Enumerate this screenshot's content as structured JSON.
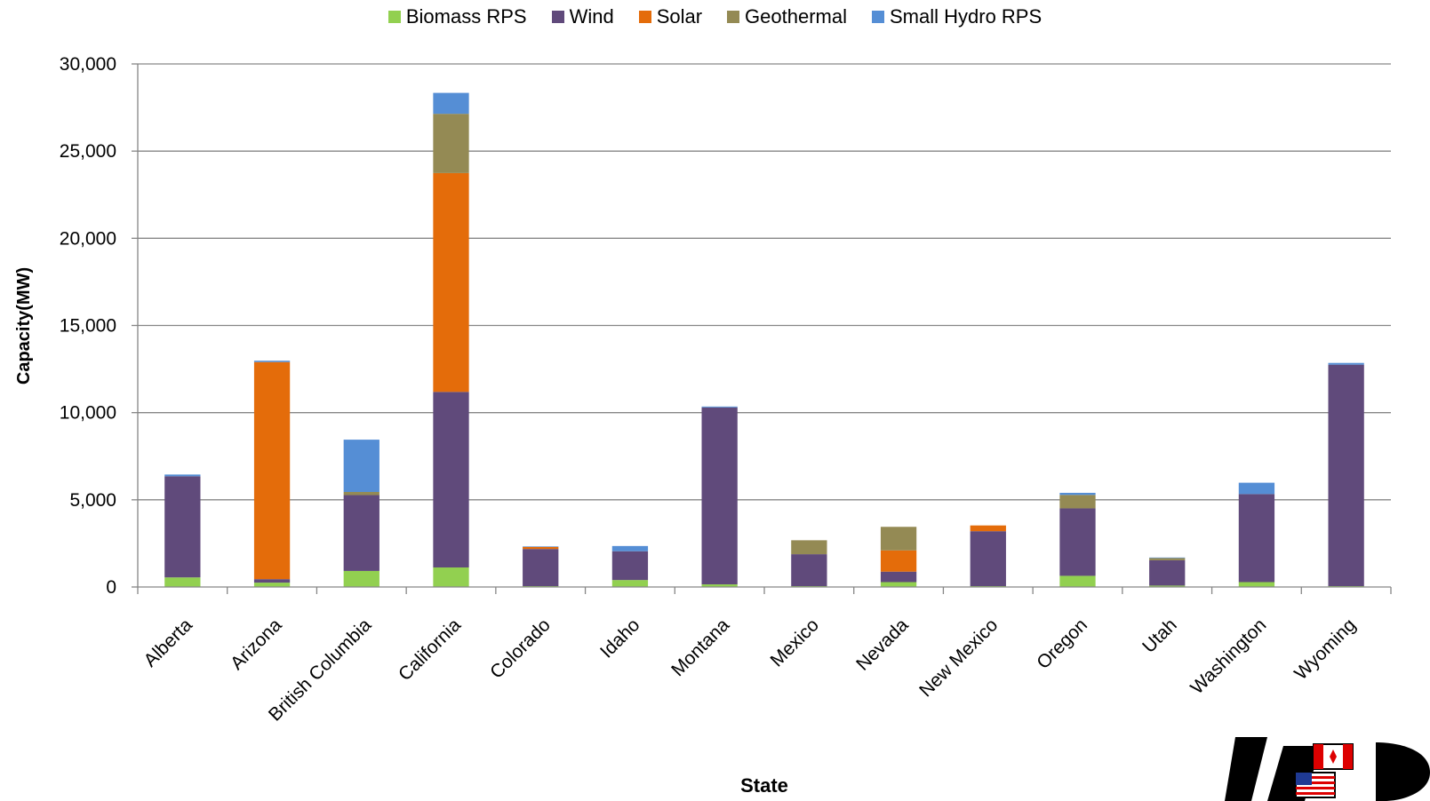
{
  "chart_data": {
    "type": "bar",
    "stacked": true,
    "categories": [
      "Alberta",
      "Arizona",
      "British Columbia",
      "California",
      "Colorado",
      "Idaho",
      "Montana",
      "Mexico",
      "Nevada",
      "New Mexico",
      "Oregon",
      "Utah",
      "Washington",
      "Wyoming"
    ],
    "series": [
      {
        "name": "Biomass RPS",
        "color": "#92d050",
        "values": [
          550,
          250,
          920,
          1120,
          50,
          400,
          150,
          50,
          280,
          50,
          640,
          80,
          280,
          50
        ]
      },
      {
        "name": "Wind",
        "color": "#604a7b",
        "values": [
          5800,
          200,
          4350,
          10070,
          2130,
          1650,
          10150,
          1830,
          600,
          3150,
          3870,
          1450,
          5050,
          12700
        ]
      },
      {
        "name": "Solar",
        "color": "#e46c0a",
        "values": [
          0,
          12450,
          0,
          12550,
          120,
          0,
          0,
          0,
          1220,
          330,
          0,
          0,
          0,
          0
        ]
      },
      {
        "name": "Geothermal",
        "color": "#948a54",
        "values": [
          0,
          0,
          180,
          3400,
          0,
          0,
          0,
          800,
          1350,
          0,
          770,
          130,
          0,
          0
        ]
      },
      {
        "name": "Small Hydro RPS",
        "color": "#558ed5",
        "values": [
          100,
          80,
          3000,
          1200,
          30,
          300,
          50,
          0,
          0,
          0,
          120,
          30,
          650,
          100
        ]
      }
    ],
    "xlabel": "State",
    "ylabel": "Capacity(MW)",
    "ylim": [
      0,
      30000
    ],
    "yticks": [
      0,
      5000,
      10000,
      15000,
      20000,
      25000,
      30000
    ],
    "ytick_labels": [
      "0",
      "5,000",
      "10,000",
      "15,000",
      "20,000",
      "25,000",
      "30,000"
    ],
    "grid": true,
    "legend_position": "top-center"
  },
  "logo": {
    "name": "wecc-logo-icon"
  }
}
